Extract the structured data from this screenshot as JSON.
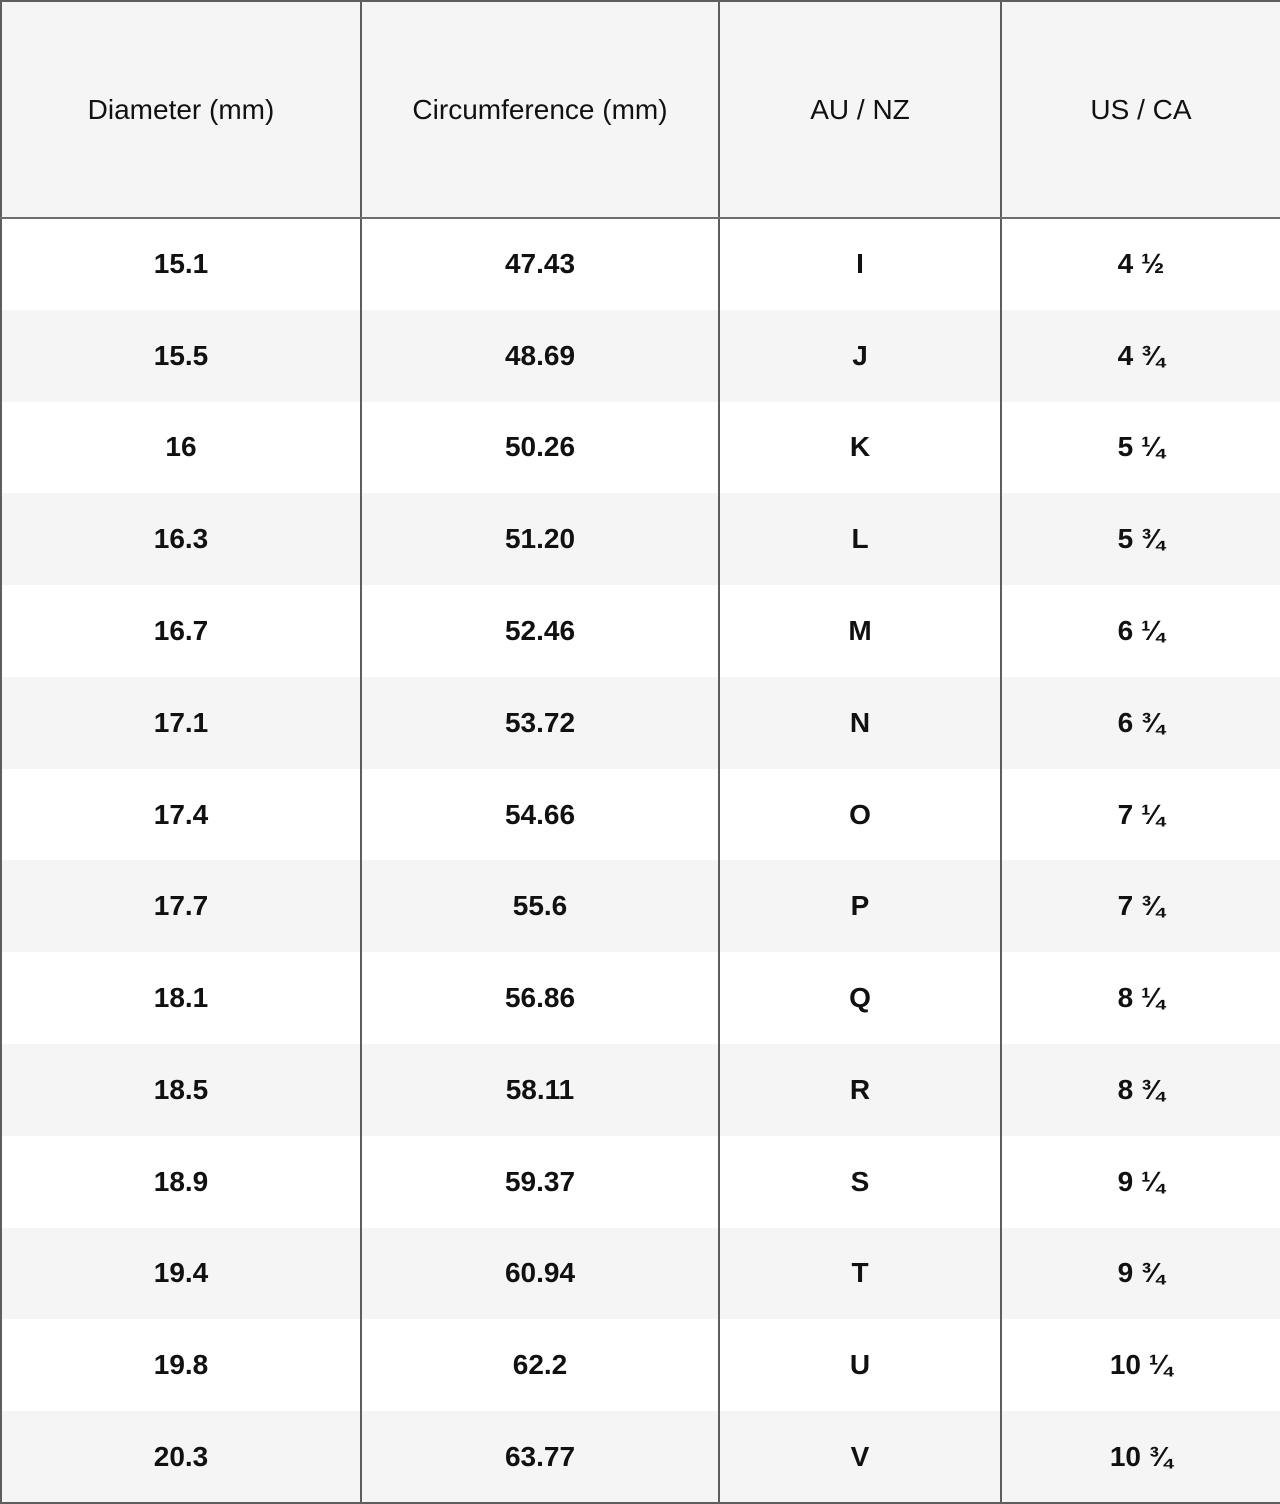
{
  "headers": [
    "Diameter (mm)",
    "Circumference (mm)",
    "AU / NZ",
    "US / CA"
  ],
  "rows": [
    [
      "15.1",
      "47.43",
      "I",
      "4 ½"
    ],
    [
      "15.5",
      "48.69",
      "J",
      "4 ¾"
    ],
    [
      "16",
      "50.26",
      "K",
      "5 ¼"
    ],
    [
      "16.3",
      "51.20",
      "L",
      "5 ¾"
    ],
    [
      "16.7",
      "52.46",
      "M",
      "6 ¼"
    ],
    [
      "17.1",
      "53.72",
      "N",
      "6 ¾"
    ],
    [
      "17.4",
      "54.66",
      "O",
      "7 ¼"
    ],
    [
      "17.7",
      "55.6",
      "P",
      "7 ¾"
    ],
    [
      "18.1",
      "56.86",
      "Q",
      "8 ¼"
    ],
    [
      "18.5",
      "58.11",
      "R",
      "8 ¾"
    ],
    [
      "18.9",
      "59.37",
      "S",
      "9 ¼"
    ],
    [
      "19.4",
      "60.94",
      "T",
      "9 ¾"
    ],
    [
      "19.8",
      "62.2",
      "U",
      "10 ¼"
    ],
    [
      "20.3",
      "63.77",
      "V",
      "10 ¾"
    ]
  ]
}
